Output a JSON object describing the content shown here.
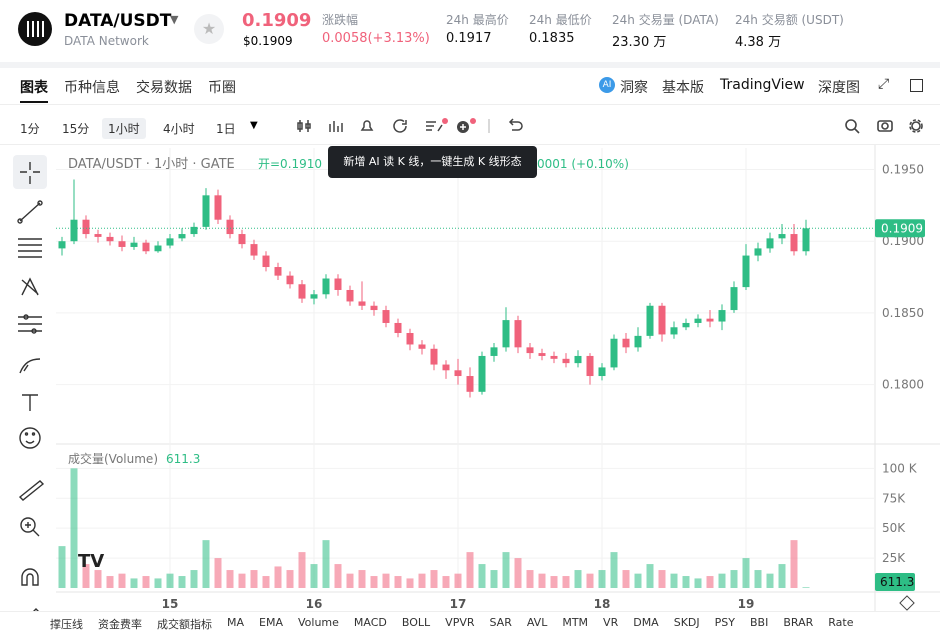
{
  "header": {
    "pair": "DATA/USDT",
    "network": "DATA Network",
    "price": "0.1909",
    "price_usd": "$0.1909",
    "stats": [
      {
        "label": "涨跌幅",
        "value": "0.0058(+3.13%)"
      },
      {
        "label": "24h 最高价",
        "value": "0.1917"
      },
      {
        "label": "24h 最低价",
        "value": "0.1835"
      },
      {
        "label": "24h 交易量 (DATA)",
        "value": "23.30 万"
      },
      {
        "label": "24h 交易额 (USDT)",
        "value": "4.38 万"
      }
    ]
  },
  "tabs": {
    "left": [
      "图表",
      "币种信息",
      "交易数据",
      "币圈"
    ],
    "right": [
      "洞察",
      "基本版",
      "TradingView",
      "深度图"
    ]
  },
  "intervals": [
    "1分",
    "15分",
    "1小时",
    "4小时",
    "1日"
  ],
  "tooltip": "新增 AI 读 K 线，一键生成 K 线形态",
  "indicators": [
    "撑压线",
    "资金费率",
    "成交额指标",
    "MA",
    "EMA",
    "Volume",
    "MACD",
    "BOLL",
    "VPVR",
    "SAR",
    "AVL",
    "MTM",
    "VR",
    "DMA",
    "SKDJ",
    "PSY",
    "BBI",
    "BRAR",
    "Rate"
  ],
  "chart_data": {
    "type": "candlestick",
    "title": "DATA/USDT · 1小时 · GATE",
    "open_label": "开=0.1910",
    "change_label": "0001 (+0.10%)",
    "up_color": "#2ebd85",
    "down_color": "#f0627b",
    "grid": true,
    "categories": [
      null,
      null,
      null,
      null,
      null,
      null,
      null,
      null,
      null,
      "15",
      null,
      null,
      null,
      null,
      null,
      null,
      null,
      null,
      null,
      null,
      null,
      "16",
      null,
      null,
      null,
      null,
      null,
      null,
      null,
      null,
      null,
      null,
      null,
      "17",
      null,
      null,
      null,
      null,
      null,
      null,
      null,
      null,
      null,
      null,
      null,
      "18",
      null,
      null,
      null,
      null,
      null,
      null,
      null,
      null,
      null,
      null,
      null,
      "19",
      null,
      null,
      null,
      null,
      null
    ],
    "open": [
      0.1895,
      0.19,
      0.1915,
      0.1905,
      0.1903,
      0.19,
      0.1896,
      0.1899,
      0.1893,
      0.1897,
      0.1902,
      0.1905,
      0.191,
      0.1932,
      0.1915,
      0.1905,
      0.1898,
      0.189,
      0.1882,
      0.1876,
      0.187,
      0.186,
      0.1863,
      0.1874,
      0.1866,
      0.1858,
      0.1855,
      0.1852,
      0.1843,
      0.1836,
      0.1828,
      0.1825,
      0.1814,
      0.181,
      0.1806,
      0.1795,
      0.182,
      0.1826,
      0.1845,
      0.1826,
      0.1822,
      0.182,
      0.1818,
      0.1815,
      0.182,
      0.1806,
      0.1812,
      0.1832,
      0.1826,
      0.1834,
      0.1855,
      0.1835,
      0.184,
      0.1843,
      0.1846,
      0.1844,
      0.1852,
      0.1868,
      0.189,
      0.1895,
      0.1902,
      0.1905,
      0.1893
    ],
    "high": [
      0.1903,
      0.1943,
      0.1918,
      0.1908,
      0.1906,
      0.1904,
      0.1903,
      0.1901,
      0.19,
      0.1905,
      0.1909,
      0.1913,
      0.1937,
      0.1936,
      0.1918,
      0.1908,
      0.1901,
      0.1893,
      0.1885,
      0.1879,
      0.1873,
      0.1866,
      0.1877,
      0.1877,
      0.1869,
      0.1872,
      0.1858,
      0.1855,
      0.1846,
      0.1839,
      0.1831,
      0.1828,
      0.1817,
      0.1818,
      0.1812,
      0.1823,
      0.1829,
      0.1854,
      0.1848,
      0.1829,
      0.1825,
      0.1823,
      0.1822,
      0.1824,
      0.1822,
      0.1815,
      0.1835,
      0.1836,
      0.184,
      0.1857,
      0.1857,
      0.1844,
      0.1846,
      0.1849,
      0.1852,
      0.1856,
      0.1872,
      0.1898,
      0.1899,
      0.1906,
      0.1912,
      0.1912,
      0.1915
    ],
    "low": [
      0.189,
      0.1898,
      0.1902,
      0.1899,
      0.1897,
      0.1893,
      0.1894,
      0.1891,
      0.1892,
      0.1895,
      0.19,
      0.1903,
      0.1908,
      0.1912,
      0.1902,
      0.1895,
      0.1887,
      0.1879,
      0.1873,
      0.1867,
      0.1857,
      0.1856,
      0.186,
      0.1862,
      0.1855,
      0.1852,
      0.1848,
      0.184,
      0.1833,
      0.1824,
      0.1821,
      0.181,
      0.1804,
      0.18,
      0.1791,
      0.1793,
      0.1816,
      0.1823,
      0.1822,
      0.1818,
      0.1817,
      0.1815,
      0.1812,
      0.1812,
      0.18,
      0.1803,
      0.181,
      0.1822,
      0.1823,
      0.1832,
      0.183,
      0.1832,
      0.1838,
      0.184,
      0.184,
      0.1838,
      0.185,
      0.1866,
      0.1886,
      0.1892,
      0.1898,
      0.189,
      0.189
    ],
    "close": [
      0.19,
      0.1915,
      0.1905,
      0.1903,
      0.19,
      0.1896,
      0.1899,
      0.1893,
      0.1897,
      0.1902,
      0.1905,
      0.191,
      0.1932,
      0.1915,
      0.1905,
      0.1898,
      0.189,
      0.1882,
      0.1876,
      0.187,
      0.186,
      0.1863,
      0.1874,
      0.1866,
      0.1858,
      0.1855,
      0.1852,
      0.1843,
      0.1836,
      0.1828,
      0.1825,
      0.1814,
      0.181,
      0.1806,
      0.1795,
      0.182,
      0.1826,
      0.1845,
      0.1826,
      0.1822,
      0.182,
      0.1818,
      0.1815,
      0.182,
      0.1806,
      0.1812,
      0.1832,
      0.1826,
      0.1834,
      0.1855,
      0.1835,
      0.184,
      0.1843,
      0.1846,
      0.1844,
      0.1852,
      0.1868,
      0.189,
      0.1895,
      0.1902,
      0.1905,
      0.1893,
      0.1909
    ],
    "ylim": [
      0.176,
      0.1965
    ],
    "yticks": [
      {
        "value": 0.18,
        "label": "0.1800"
      },
      {
        "value": 0.185,
        "label": "0.1850"
      },
      {
        "value": 0.19,
        "label": "0.1900"
      },
      {
        "value": 0.195,
        "label": "0.1950"
      }
    ],
    "volume": {
      "name": "成交量(Volume)",
      "ylim": [
        0,
        117000
      ],
      "yticks": [
        {
          "value": 25000,
          "label": "25K"
        },
        {
          "value": 50000,
          "label": "50K"
        },
        {
          "value": 75000,
          "label": "75K"
        },
        {
          "value": 100000,
          "label": "100 K"
        }
      ],
      "values": [
        35000,
        100000,
        20000,
        15000,
        10000,
        12000,
        8000,
        10000,
        8000,
        12000,
        10000,
        15000,
        40000,
        25000,
        15000,
        12000,
        15000,
        10000,
        18000,
        15000,
        30000,
        20000,
        40000,
        20000,
        12000,
        15000,
        10000,
        12000,
        10000,
        8000,
        12000,
        15000,
        10000,
        12000,
        30000,
        20000,
        15000,
        30000,
        25000,
        15000,
        12000,
        10000,
        10000,
        15000,
        12000,
        15000,
        30000,
        15000,
        12000,
        20000,
        15000,
        12000,
        10000,
        8000,
        10000,
        12000,
        15000,
        25000,
        15000,
        12000,
        20000,
        40000,
        611.3
      ]
    }
  }
}
